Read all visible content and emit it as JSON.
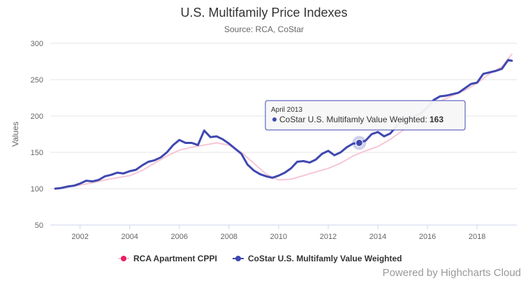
{
  "chart_data": {
    "type": "line",
    "title": "U.S. Multifamily Price Indexes",
    "subtitle": "Source: RCA, CoStar",
    "ylabel": "Values",
    "xlabel": "",
    "ylim": [
      50,
      300
    ],
    "yticks": [
      50,
      100,
      150,
      200,
      250,
      300
    ],
    "xlim": [
      2000.8,
      2019.6
    ],
    "xticks": [
      2002,
      2004,
      2006,
      2008,
      2010,
      2012,
      2014,
      2016,
      2018
    ],
    "grid": true,
    "legend_position": "bottom-center",
    "series": [
      {
        "name": "RCA Apartment CPPI",
        "color": "#f7c7d6",
        "legend_color": "#e91e63",
        "x": [
          2001.0,
          2001.5,
          2002.0,
          2002.5,
          2003.0,
          2003.5,
          2004.0,
          2004.5,
          2005.0,
          2005.5,
          2006.0,
          2006.5,
          2007.0,
          2007.5,
          2008.0,
          2008.5,
          2009.0,
          2009.5,
          2010.0,
          2010.5,
          2011.0,
          2011.5,
          2012.0,
          2012.5,
          2013.0,
          2013.5,
          2014.0,
          2014.5,
          2015.0,
          2015.5,
          2016.0,
          2016.5,
          2017.0,
          2017.5,
          2018.0,
          2018.5,
          2019.0,
          2019.4
        ],
        "y": [
          100,
          102,
          105,
          108,
          112,
          115,
          118,
          125,
          135,
          145,
          153,
          157,
          160,
          163,
          160,
          150,
          135,
          120,
          112,
          113,
          118,
          123,
          128,
          135,
          145,
          152,
          158,
          168,
          180,
          195,
          210,
          220,
          228,
          235,
          245,
          258,
          268,
          285
        ]
      },
      {
        "name": "CoStar U.S. Multifamly Value Weighted",
        "color": "#3f48b0",
        "legend_color": "#3f48b0",
        "x": [
          2001.0,
          2001.25,
          2001.5,
          2001.75,
          2002.0,
          2002.25,
          2002.5,
          2002.75,
          2003.0,
          2003.25,
          2003.5,
          2003.75,
          2004.0,
          2004.25,
          2004.5,
          2004.75,
          2005.0,
          2005.25,
          2005.5,
          2005.75,
          2006.0,
          2006.25,
          2006.5,
          2006.75,
          2007.0,
          2007.25,
          2007.5,
          2007.75,
          2008.0,
          2008.25,
          2008.5,
          2008.75,
          2009.0,
          2009.25,
          2009.5,
          2009.75,
          2010.0,
          2010.25,
          2010.5,
          2010.75,
          2011.0,
          2011.25,
          2011.5,
          2011.75,
          2012.0,
          2012.25,
          2012.5,
          2012.75,
          2013.0,
          2013.25,
          2013.5,
          2013.75,
          2014.0,
          2014.25,
          2014.5,
          2014.75,
          2015.0,
          2015.25,
          2015.5,
          2015.75,
          2016.0,
          2016.25,
          2016.5,
          2016.75,
          2017.0,
          2017.25,
          2017.5,
          2017.75,
          2018.0,
          2018.25,
          2018.5,
          2018.75,
          2019.0,
          2019.25,
          2019.4
        ],
        "y": [
          100,
          101,
          103,
          104,
          107,
          111,
          110,
          112,
          117,
          119,
          122,
          121,
          124,
          126,
          132,
          137,
          139,
          143,
          150,
          160,
          167,
          163,
          163,
          160,
          180,
          171,
          172,
          168,
          162,
          155,
          148,
          133,
          125,
          120,
          117,
          115,
          118,
          122,
          128,
          137,
          138,
          136,
          140,
          148,
          152,
          146,
          150,
          157,
          162,
          163,
          166,
          175,
          178,
          172,
          176,
          186,
          195,
          198,
          200,
          204,
          212,
          222,
          227,
          228,
          230,
          232,
          238,
          244,
          246,
          258,
          260,
          262,
          265,
          277,
          276
        ]
      }
    ],
    "tooltip": {
      "date": "April 2013",
      "series_name": "CoStar U.S. Multifamly Value Weighted",
      "value": "163",
      "x": 2013.25,
      "y": 163
    }
  },
  "credits": "Powered by Highcharts Cloud"
}
